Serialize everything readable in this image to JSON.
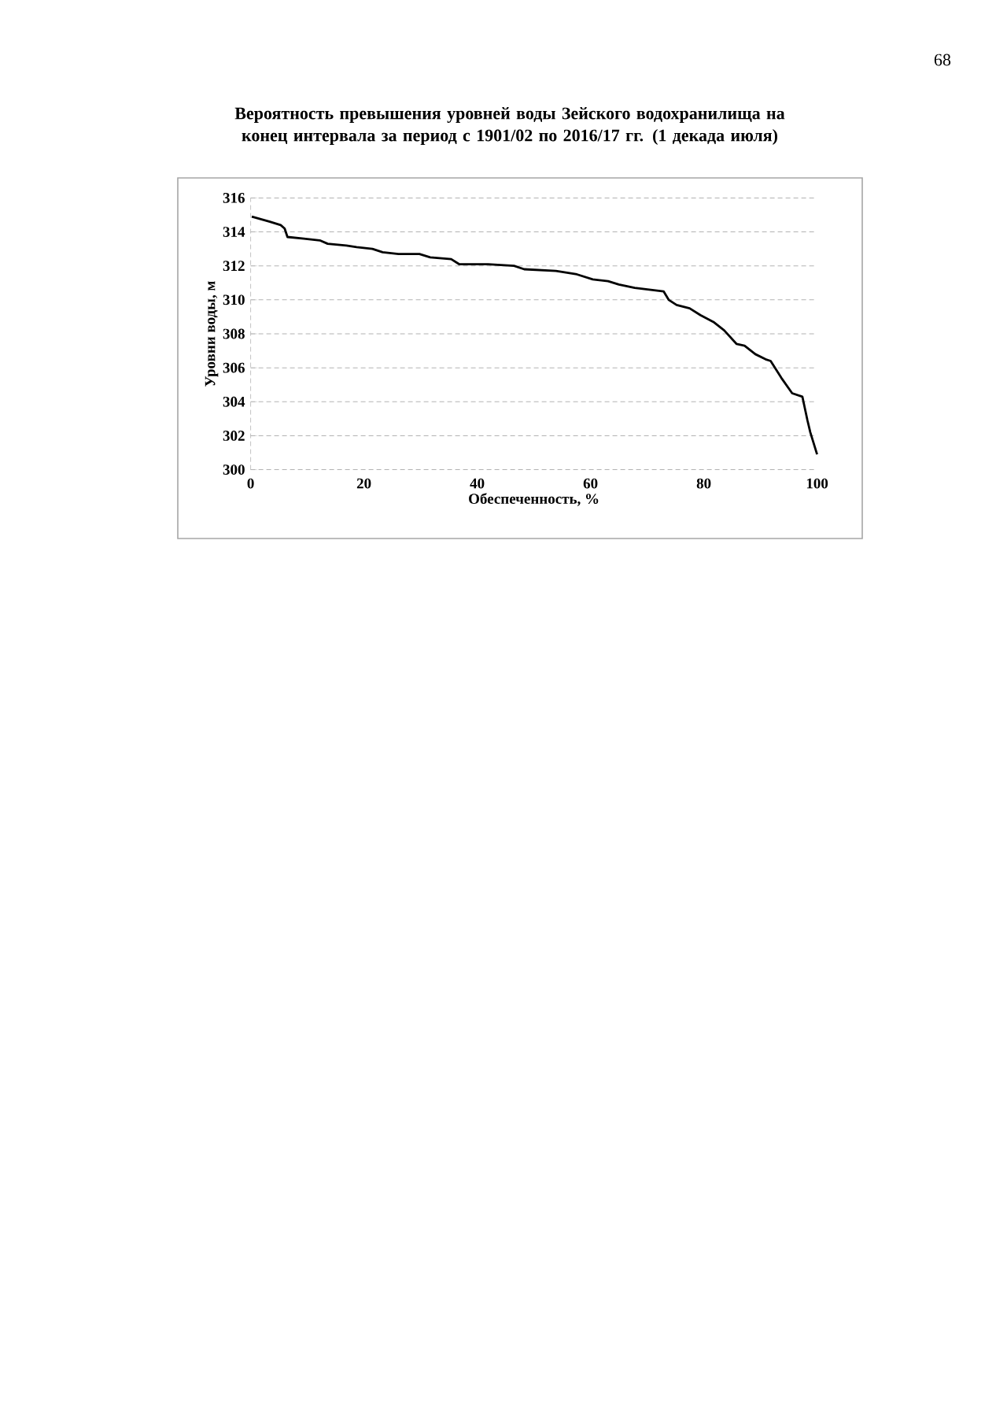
{
  "chart_data": {
    "type": "line",
    "title": "Вероятность превышения уровней воды Зейского водохранилища на конец интервала за период с 1901/02 по 2016/17 гг. (1 декада июля)",
    "xlabel": "Обеспеченность, %",
    "ylabel": "Уровни воды, м",
    "annotations": [
      "68"
    ],
    "xlim": [
      0,
      100
    ],
    "xticks": [
      0,
      20,
      40,
      60,
      80,
      100
    ],
    "ylim": [
      300,
      316
    ],
    "yticks": [
      300,
      302,
      304,
      306,
      308,
      310,
      312,
      314,
      316
    ],
    "grid": "y",
    "series": [
      {
        "color": "#000000",
        "x": [
          0.2,
          3.4,
          5.3,
          6.0,
          6.5,
          9.4,
          12.2,
          13.6,
          16.9,
          18.7,
          21.5,
          23.3,
          26.1,
          29.8,
          31.7,
          35.4,
          36.8,
          41.9,
          46.5,
          48.3,
          53.9,
          57.6,
          60.4,
          63.1,
          65.0,
          67.8,
          72.9,
          73.8,
          75.2,
          77.5,
          79.4,
          81.7,
          83.6,
          85.8,
          87.2,
          89.1,
          90.9,
          91.8,
          93.7,
          95.6,
          97.4,
          98.3,
          98.8,
          100.0
        ],
        "values": [
          314.9,
          314.6,
          314.4,
          314.2,
          313.7,
          313.6,
          313.5,
          313.3,
          313.2,
          313.1,
          313.0,
          312.8,
          312.7,
          312.7,
          312.5,
          312.4,
          312.1,
          312.1,
          312.0,
          311.8,
          311.7,
          311.5,
          311.2,
          311.1,
          310.9,
          310.7,
          310.5,
          310.0,
          309.7,
          309.5,
          309.1,
          308.7,
          308.2,
          307.4,
          307.3,
          306.8,
          306.5,
          306.4,
          305.4,
          304.5,
          304.3,
          302.9,
          302.2,
          300.9
        ]
      }
    ]
  }
}
